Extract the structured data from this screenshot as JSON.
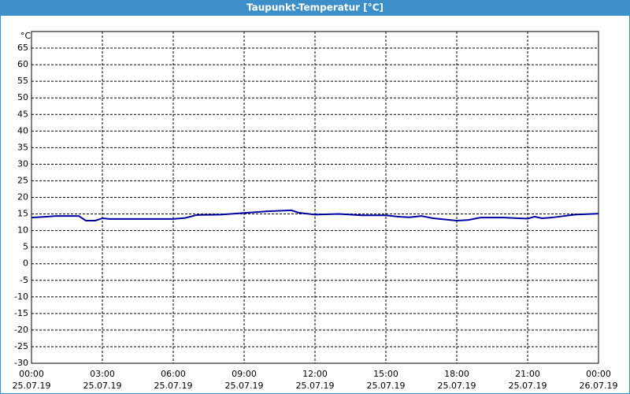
{
  "chart_data": {
    "type": "line",
    "title": "Taupunkt-Temperatur [°C]",
    "y_unit": "°C",
    "x": [
      0,
      0.7,
      1,
      2,
      2.3,
      2.7,
      3,
      3.3,
      5,
      6,
      6.5,
      7,
      8,
      9,
      10,
      11,
      11.3,
      12,
      13,
      14,
      15,
      15.5,
      16,
      16.5,
      17,
      18,
      18.5,
      19,
      20,
      21,
      21.3,
      21.6,
      22,
      23,
      24
    ],
    "series": [
      {
        "name": "Taupunkt-Temperatur",
        "color": "#0000a0",
        "values": [
          13.9,
          14.2,
          14.4,
          14.4,
          13.0,
          13.0,
          13.7,
          13.5,
          13.5,
          13.5,
          13.8,
          14.7,
          14.8,
          15.3,
          15.8,
          16.1,
          15.4,
          14.8,
          15.0,
          14.6,
          14.6,
          14.2,
          14.0,
          14.4,
          13.7,
          13.0,
          13.2,
          13.9,
          13.9,
          13.6,
          14.2,
          13.7,
          13.9,
          14.8,
          15.1
        ]
      }
    ],
    "xlim": [
      0,
      24
    ],
    "xticks": [
      {
        "value": 0,
        "label": "00:00"
      },
      {
        "value": 3,
        "label": "03:00"
      },
      {
        "value": 6,
        "label": "06:00"
      },
      {
        "value": 9,
        "label": "09:00"
      },
      {
        "value": 12,
        "label": "12:00"
      },
      {
        "value": 15,
        "label": "15:00"
      },
      {
        "value": 18,
        "label": "18:00"
      },
      {
        "value": 21,
        "label": "21:00"
      },
      {
        "value": 24,
        "label": "00:00"
      }
    ],
    "x_dates": [
      "25.07.19",
      "25.07.19",
      "25.07.19",
      "25.07.19",
      "25.07.19",
      "25.07.19",
      "25.07.19",
      "25.07.19",
      "26.07.19"
    ],
    "ylim": [
      -30,
      70
    ],
    "yticks": [
      -30,
      -25,
      -20,
      -15,
      -10,
      -5,
      0,
      5,
      10,
      15,
      20,
      25,
      30,
      35,
      40,
      45,
      50,
      55,
      60,
      65
    ],
    "grid": true
  }
}
